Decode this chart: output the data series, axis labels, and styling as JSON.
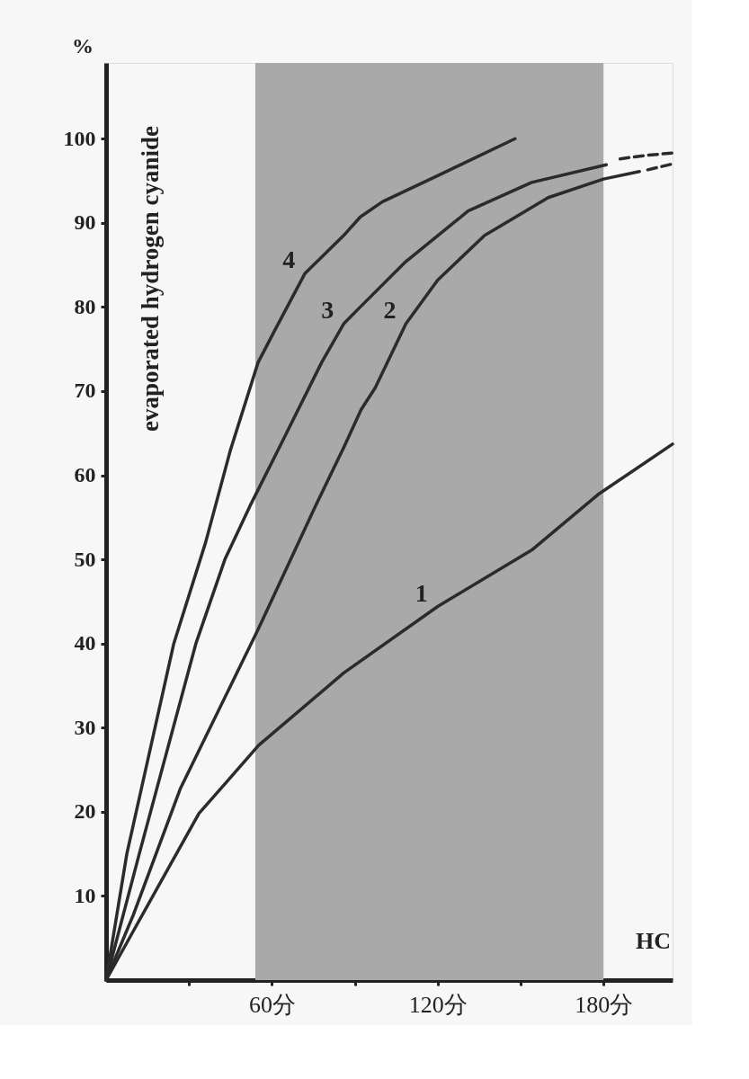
{
  "chart_data": {
    "type": "line",
    "xlabel": "HC",
    "ylabel": "evaporated hydrogen cyanide",
    "xlim": [
      0,
      205
    ],
    "ylim": [
      0,
      109
    ],
    "xticks": [
      {
        "value": 30,
        "label": null
      },
      {
        "value": 60,
        "label": "60分"
      },
      {
        "value": 90,
        "label": null
      },
      {
        "value": 120,
        "label": "120分"
      },
      {
        "value": 150,
        "label": null
      },
      {
        "value": 180,
        "label": "180分"
      }
    ],
    "yticks": [
      10,
      20,
      30,
      40,
      50,
      60,
      70,
      80,
      90,
      100
    ],
    "grid": false,
    "marker": "none",
    "line_style": "solid",
    "series": [
      {
        "name": "1",
        "color": "#2b2b2b",
        "x": [
          0,
          9.8,
          33.6,
          55.2,
          86,
          120,
          154,
          178,
          205
        ],
        "values": [
          0,
          5.8,
          19.8,
          27.9,
          36.5,
          44.4,
          51.1,
          57.7,
          63.7
        ]
      },
      {
        "name": "2",
        "color": "#2b2b2b",
        "x": [
          0,
          9.8,
          26.8,
          55.2,
          75.7,
          86,
          92.3,
          97.4,
          108.5,
          120,
          137,
          160,
          180,
          193
        ],
        "values": [
          0,
          7.7,
          22.7,
          41.8,
          56.3,
          63.3,
          67.8,
          70.4,
          78,
          83.2,
          88.5,
          93,
          95.2,
          96.1
        ]
      },
      {
        "name": "3",
        "color": "#2b2b2b",
        "x": [
          0,
          12,
          32.5,
          43,
          52,
          63,
          78,
          86,
          92,
          108.5,
          131,
          154,
          181
        ],
        "values": [
          0,
          15,
          40,
          50,
          56.3,
          63.5,
          73.4,
          78,
          80,
          85.4,
          91.4,
          94.8,
          96.9
        ]
      },
      {
        "name": "4",
        "color": "#2b2b2b",
        "x": [
          0,
          7.5,
          24.5,
          36,
          45,
          55,
          61,
          72,
          86,
          92,
          100,
          120,
          148
        ],
        "values": [
          0,
          15,
          40,
          52,
          63,
          73.4,
          77.2,
          84,
          88.5,
          90.7,
          92.5,
          95.6,
          100
        ]
      },
      {
        "color": "#2b2b2b",
        "line_style": "dashed",
        "x": [
          186,
          195,
          205
        ],
        "values": [
          97.6,
          98,
          98.3
        ]
      },
      {
        "color": "#2b2b2b",
        "line_style": "dashed",
        "x": [
          196,
          205
        ],
        "values": [
          96.3,
          97
        ]
      }
    ],
    "bands": [
      {
        "axis": "x",
        "from": 54,
        "to": 180,
        "color": "#a9a9a9"
      }
    ],
    "annotations": [
      "%"
    ]
  }
}
